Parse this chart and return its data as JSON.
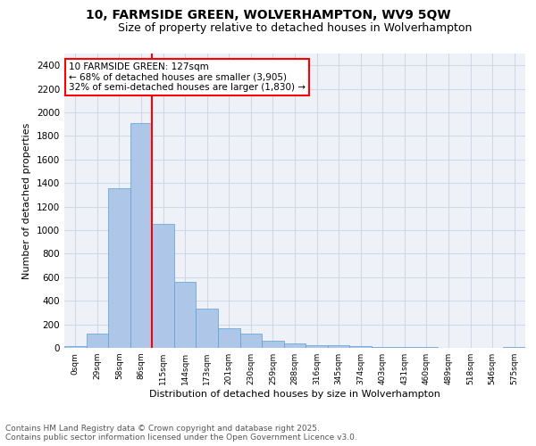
{
  "title1": "10, FARMSIDE GREEN, WOLVERHAMPTON, WV9 5QW",
  "title2": "Size of property relative to detached houses in Wolverhampton",
  "xlabel": "Distribution of detached houses by size in Wolverhampton",
  "ylabel": "Number of detached properties",
  "footnote1": "Contains HM Land Registry data © Crown copyright and database right 2025.",
  "footnote2": "Contains public sector information licensed under the Open Government Licence v3.0.",
  "bins": [
    "0sqm",
    "29sqm",
    "58sqm",
    "86sqm",
    "115sqm",
    "144sqm",
    "173sqm",
    "201sqm",
    "230sqm",
    "259sqm",
    "288sqm",
    "316sqm",
    "345sqm",
    "374sqm",
    "403sqm",
    "431sqm",
    "460sqm",
    "489sqm",
    "518sqm",
    "546sqm",
    "575sqm"
  ],
  "bar_values": [
    15,
    125,
    1355,
    1910,
    1055,
    560,
    335,
    170,
    120,
    60,
    35,
    25,
    22,
    15,
    10,
    5,
    5,
    3,
    2,
    1,
    8
  ],
  "bar_color": "#aec6e8",
  "bar_edge_color": "#5a9fd4",
  "grid_color": "#d0d8e8",
  "background_color": "#eef2f8",
  "annotation_text": "10 FARMSIDE GREEN: 127sqm\n← 68% of detached houses are smaller (3,905)\n32% of semi-detached houses are larger (1,830) →",
  "annotation_box_color": "white",
  "annotation_box_edge": "red",
  "vline_color": "red",
  "ylim": [
    0,
    2500
  ],
  "yticks": [
    0,
    200,
    400,
    600,
    800,
    1000,
    1200,
    1400,
    1600,
    1800,
    2000,
    2200,
    2400
  ],
  "title1_fontsize": 10,
  "title2_fontsize": 9,
  "footnote_fontsize": 6.5,
  "ylabel_fontsize": 8,
  "xlabel_fontsize": 8
}
